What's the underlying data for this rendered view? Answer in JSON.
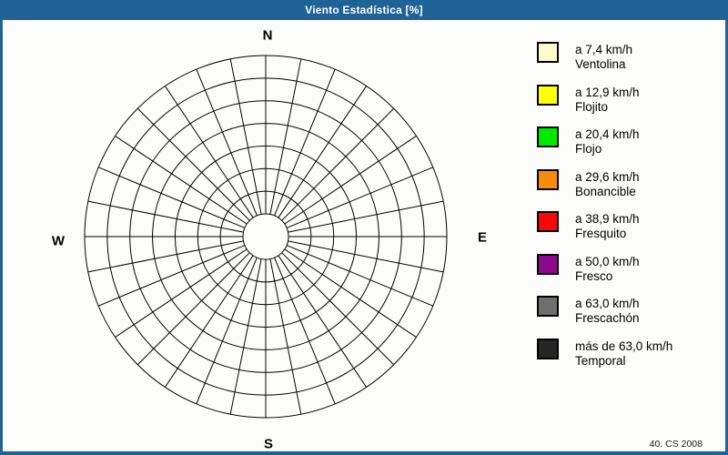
{
  "window": {
    "title": "Viento Estadística [%]",
    "credit": "40. CS 2008"
  },
  "colors": {
    "frame": "#1F6396",
    "panel_background": "#FCFDFB",
    "grid_line": "#000000",
    "title_text": "#FFFFFF"
  },
  "chart_data": {
    "type": "wind-rose",
    "title": "Viento Estadística [%]",
    "value_units": "%",
    "sectors": 32,
    "rings": 7,
    "inner_hole": true,
    "grid": "on",
    "series": [],
    "compass_labels": {
      "north": "N",
      "south": "S",
      "east": "E",
      "west": "W"
    },
    "legend_position": "right",
    "legend": [
      {
        "speed": "a 7,4 km/h",
        "name": "Ventolina",
        "color": "#FFF9CE"
      },
      {
        "speed": "a 12,9 km/h",
        "name": "Flojito",
        "color": "#FFFF00"
      },
      {
        "speed": "a 20,4 km/h",
        "name": "Flojo",
        "color": "#00EB00"
      },
      {
        "speed": "a 29,6 km/h",
        "name": "Bonancible",
        "color": "#F98B0B"
      },
      {
        "speed": "a 38,9 km/h",
        "name": "Fresquito",
        "color": "#F90606"
      },
      {
        "speed": "a 50,0 km/h",
        "name": "Fresco",
        "color": "#8E098F"
      },
      {
        "speed": "a 63,0 km/h",
        "name": "Frescachón",
        "color": "#6E6E6E"
      },
      {
        "speed": "más de 63,0 km/h",
        "name": "Temporal",
        "color": "#262626"
      }
    ]
  }
}
